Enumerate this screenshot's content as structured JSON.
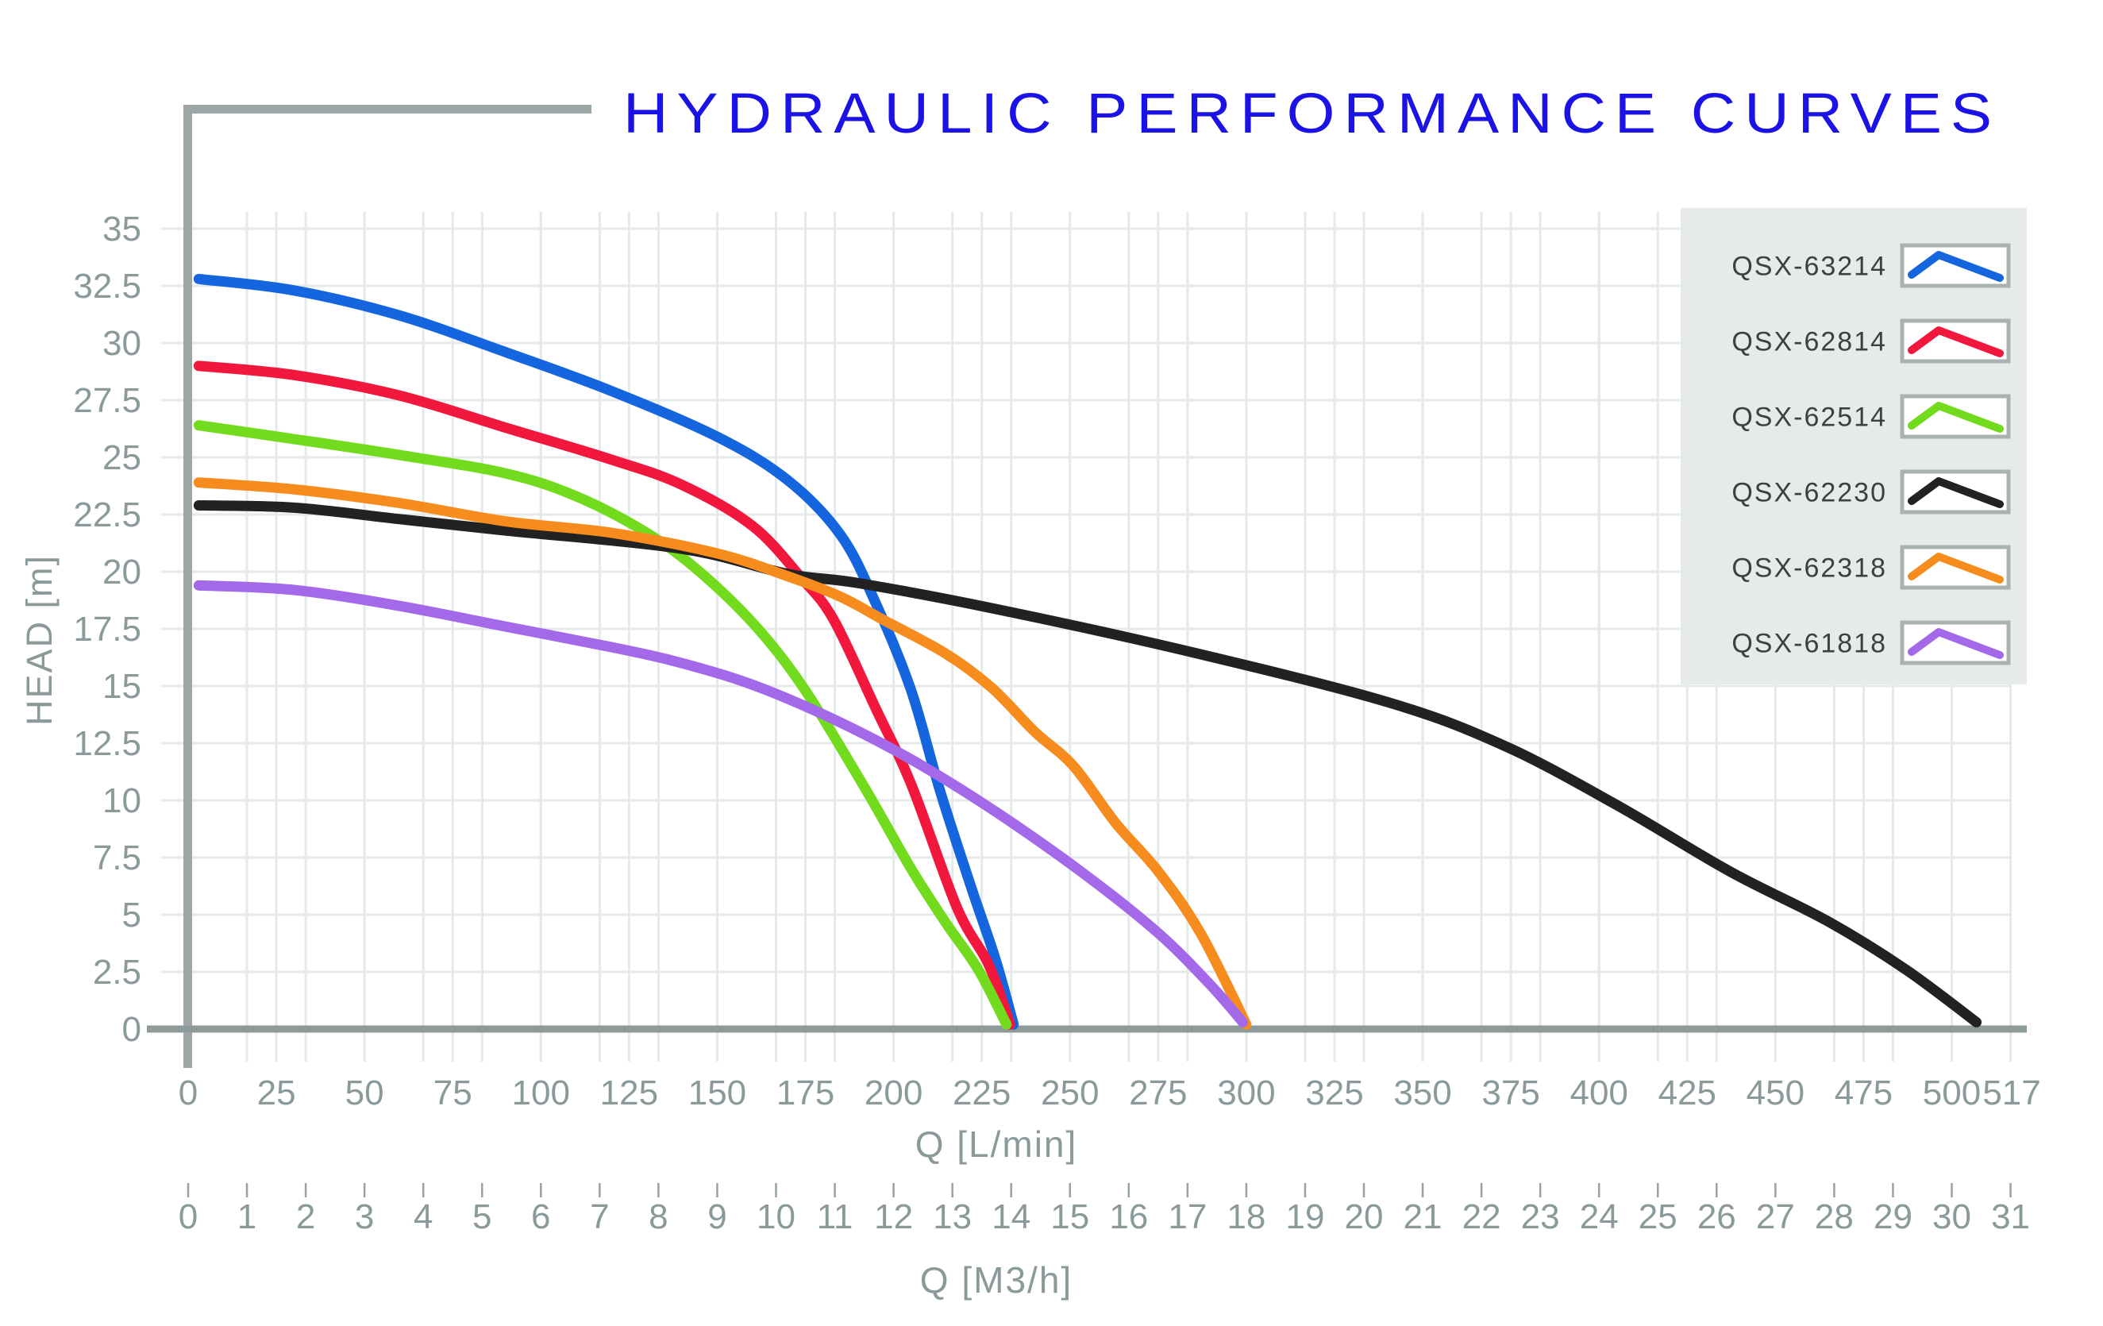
{
  "title": "HYDRAULIC PERFORMANCE CURVES",
  "colors": {
    "title": "#1B12E6",
    "grid": "#E4E9E9",
    "axis": "#8E9A9A",
    "frame": "#9CA6A6",
    "tick_text": "#8A9999",
    "tick_mark": "#97A2A2",
    "legend_bg": "#E6EAEA",
    "legend_border": "#A9B1B1",
    "legend_text": "#3B4040",
    "swatch_bg": "#FFFFFF"
  },
  "axes": {
    "y": {
      "label": "HEAD [m]",
      "min": 0,
      "max": 35,
      "step": 2.5,
      "tick_labels": [
        "0",
        "2.5",
        "5",
        "7.5",
        "10",
        "12.5",
        "15",
        "17.5",
        "20",
        "22.5",
        "25",
        "27.5",
        "30",
        "32.5",
        "35"
      ]
    },
    "x_lmin": {
      "label": "Q [L/min]",
      "tick_values": [
        0,
        25,
        50,
        75,
        100,
        125,
        150,
        175,
        200,
        225,
        250,
        275,
        300,
        325,
        350,
        375,
        400,
        425,
        450,
        475,
        500,
        517
      ]
    },
    "x_m3h": {
      "label": "Q [M3/h]",
      "tick_values": [
        0,
        1,
        2,
        3,
        4,
        5,
        6,
        7,
        8,
        9,
        10,
        11,
        12,
        13,
        14,
        15,
        16,
        17,
        18,
        19,
        20,
        21,
        22,
        23,
        24,
        25,
        26,
        27,
        28,
        29,
        30,
        31
      ]
    }
  },
  "legend": [
    {
      "label": "QSX-63214",
      "color": "#1565DF"
    },
    {
      "label": "QSX-62814",
      "color": "#F2183D"
    },
    {
      "label": "QSX-62514",
      "color": "#72DB1E"
    },
    {
      "label": "QSX-62230",
      "color": "#222222"
    },
    {
      "label": "QSX-62318",
      "color": "#F78C1E"
    },
    {
      "label": "QSX-61818",
      "color": "#A369E9"
    }
  ],
  "chart_data": {
    "type": "line",
    "title": "HYDRAULIC PERFORMANCE CURVES",
    "xlabel": "Q [L/min]",
    "xlabel_secondary": "Q [M3/h]",
    "ylabel": "HEAD [m]",
    "xlim": [
      0,
      517
    ],
    "ylim": [
      0,
      35
    ],
    "grid": true,
    "legend_position": "right",
    "series": [
      {
        "name": "QSX-63214",
        "color": "#1565DF",
        "points": [
          [
            3,
            32.8
          ],
          [
            30,
            32.3
          ],
          [
            60,
            31.2
          ],
          [
            90,
            29.6
          ],
          [
            120,
            27.9
          ],
          [
            150,
            25.9
          ],
          [
            170,
            24.0
          ],
          [
            185,
            21.6
          ],
          [
            195,
            18.6
          ],
          [
            205,
            14.8
          ],
          [
            213,
            10.5
          ],
          [
            222,
            6.2
          ],
          [
            229,
            3.0
          ],
          [
            234,
            0.2
          ]
        ]
      },
      {
        "name": "QSX-62814",
        "color": "#F2183D",
        "points": [
          [
            3,
            29.0
          ],
          [
            30,
            28.6
          ],
          [
            60,
            27.7
          ],
          [
            90,
            26.3
          ],
          [
            120,
            24.9
          ],
          [
            140,
            23.8
          ],
          [
            160,
            22.0
          ],
          [
            174,
            19.7
          ],
          [
            183,
            17.9
          ],
          [
            195,
            14.0
          ],
          [
            205,
            10.7
          ],
          [
            218,
            5.3
          ],
          [
            227,
            2.8
          ],
          [
            233,
            0.2
          ]
        ]
      },
      {
        "name": "QSX-62514",
        "color": "#72DB1E",
        "points": [
          [
            3,
            26.4
          ],
          [
            30,
            25.8
          ],
          [
            60,
            25.1
          ],
          [
            90,
            24.3
          ],
          [
            110,
            23.3
          ],
          [
            130,
            21.7
          ],
          [
            145,
            20.0
          ],
          [
            161,
            17.6
          ],
          [
            175,
            14.8
          ],
          [
            192,
            10.5
          ],
          [
            205,
            7.0
          ],
          [
            215,
            4.6
          ],
          [
            224,
            2.6
          ],
          [
            232,
            0.2
          ]
        ]
      },
      {
        "name": "QSX-62230",
        "color": "#222222",
        "points": [
          [
            3,
            22.9
          ],
          [
            30,
            22.8
          ],
          [
            60,
            22.3
          ],
          [
            90,
            21.8
          ],
          [
            140,
            21.0
          ],
          [
            170,
            19.9
          ],
          [
            190,
            19.5
          ],
          [
            228,
            18.4
          ],
          [
            284,
            16.5
          ],
          [
            340,
            14.3
          ],
          [
            373,
            12.4
          ],
          [
            405,
            9.8
          ],
          [
            437,
            6.9
          ],
          [
            465,
            4.7
          ],
          [
            487,
            2.6
          ],
          [
            507,
            0.3
          ]
        ]
      },
      {
        "name": "QSX-62318",
        "color": "#F78C1E",
        "points": [
          [
            3,
            23.9
          ],
          [
            30,
            23.6
          ],
          [
            60,
            23.0
          ],
          [
            90,
            22.2
          ],
          [
            120,
            21.7
          ],
          [
            150,
            20.8
          ],
          [
            170,
            19.8
          ],
          [
            185,
            18.9
          ],
          [
            197,
            17.9
          ],
          [
            215,
            16.4
          ],
          [
            228,
            14.9
          ],
          [
            240,
            13.0
          ],
          [
            251,
            11.5
          ],
          [
            263,
            9.0
          ],
          [
            275,
            6.9
          ],
          [
            287,
            4.2
          ],
          [
            300,
            0.2
          ]
        ]
      },
      {
        "name": "QSX-61818",
        "color": "#A369E9",
        "points": [
          [
            3,
            19.4
          ],
          [
            30,
            19.2
          ],
          [
            60,
            18.5
          ],
          [
            90,
            17.6
          ],
          [
            120,
            16.7
          ],
          [
            140,
            16.0
          ],
          [
            161,
            15.0
          ],
          [
            185,
            13.4
          ],
          [
            206,
            11.7
          ],
          [
            228,
            9.6
          ],
          [
            253,
            6.9
          ],
          [
            275,
            4.2
          ],
          [
            290,
            1.9
          ],
          [
            299,
            0.3
          ]
        ]
      }
    ]
  }
}
